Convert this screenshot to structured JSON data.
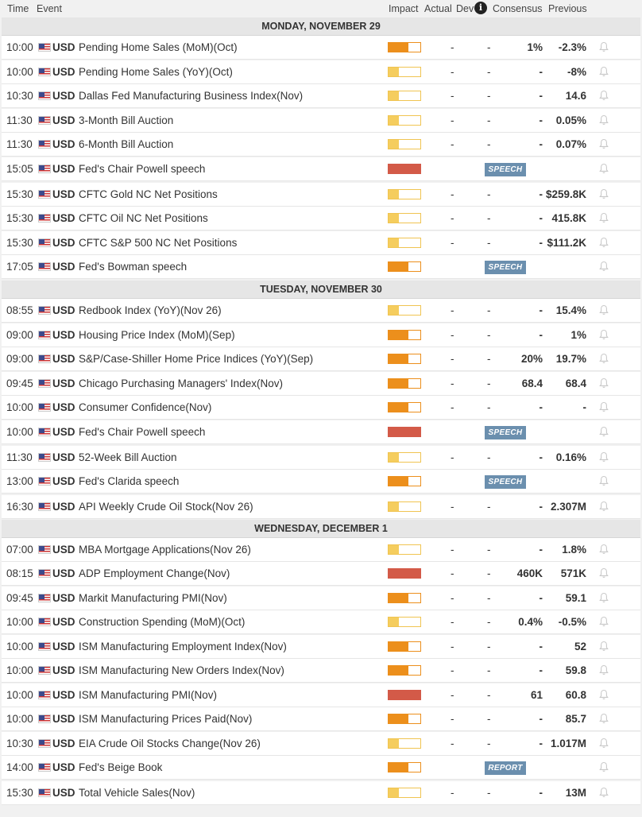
{
  "header": {
    "time": "Time",
    "event": "Event",
    "impact": "Impact",
    "actual": "Actual",
    "dev": "Dev",
    "consensus": "Consensus",
    "previous": "Previous"
  },
  "colors": {
    "impact_low": "#f5cd5e",
    "impact_medium": "#ec8f1c",
    "impact_high": "#d35a48",
    "badge": "#6b8fae"
  },
  "days": [
    {
      "label": "MONDAY, NOVEMBER 29",
      "events": [
        {
          "time": "10:00",
          "currency": "USD",
          "name": "Pending Home Sales (MoM)(Oct)",
          "impact": "medium",
          "actual": "-",
          "dev": "-",
          "consensus": "1%",
          "previous": "-2.3%"
        },
        {
          "time": "10:00",
          "currency": "USD",
          "name": "Pending Home Sales (YoY)(Oct)",
          "impact": "low",
          "actual": "-",
          "dev": "-",
          "consensus": "-",
          "previous": "-8%"
        },
        {
          "time": "10:30",
          "currency": "USD",
          "name": "Dallas Fed Manufacturing Business Index(Nov)",
          "impact": "low",
          "actual": "-",
          "dev": "-",
          "consensus": "-",
          "previous": "14.6"
        },
        {
          "time": "11:30",
          "currency": "USD",
          "name": "3-Month Bill Auction",
          "impact": "low",
          "actual": "-",
          "dev": "-",
          "consensus": "-",
          "previous": "0.05%"
        },
        {
          "time": "11:30",
          "currency": "USD",
          "name": "6-Month Bill Auction",
          "impact": "low",
          "actual": "-",
          "dev": "-",
          "consensus": "-",
          "previous": "0.07%"
        },
        {
          "time": "15:05",
          "currency": "USD",
          "name": "Fed's Chair Powell speech",
          "impact": "high",
          "badge": "SPEECH"
        },
        {
          "time": "15:30",
          "currency": "USD",
          "name": "CFTC Gold NC Net Positions",
          "impact": "low",
          "actual": "-",
          "dev": "-",
          "consensus": "-",
          "previous": "$259.8K"
        },
        {
          "time": "15:30",
          "currency": "USD",
          "name": "CFTC Oil NC Net Positions",
          "impact": "low",
          "actual": "-",
          "dev": "-",
          "consensus": "-",
          "previous": "415.8K"
        },
        {
          "time": "15:30",
          "currency": "USD",
          "name": "CFTC S&P 500 NC Net Positions",
          "impact": "low",
          "actual": "-",
          "dev": "-",
          "consensus": "-",
          "previous": "$111.2K"
        },
        {
          "time": "17:05",
          "currency": "USD",
          "name": "Fed's Bowman speech",
          "impact": "medium",
          "badge": "SPEECH"
        }
      ]
    },
    {
      "label": "TUESDAY, NOVEMBER 30",
      "events": [
        {
          "time": "08:55",
          "currency": "USD",
          "name": "Redbook Index (YoY)(Nov 26)",
          "impact": "low",
          "actual": "-",
          "dev": "-",
          "consensus": "-",
          "previous": "15.4%"
        },
        {
          "time": "09:00",
          "currency": "USD",
          "name": "Housing Price Index (MoM)(Sep)",
          "impact": "medium",
          "actual": "-",
          "dev": "-",
          "consensus": "-",
          "previous": "1%"
        },
        {
          "time": "09:00",
          "currency": "USD",
          "name": "S&P/Case-Shiller Home Price Indices (YoY)(Sep)",
          "impact": "medium",
          "actual": "-",
          "dev": "-",
          "consensus": "20%",
          "previous": "19.7%"
        },
        {
          "time": "09:45",
          "currency": "USD",
          "name": "Chicago Purchasing Managers' Index(Nov)",
          "impact": "medium",
          "actual": "-",
          "dev": "-",
          "consensus": "68.4",
          "previous": "68.4"
        },
        {
          "time": "10:00",
          "currency": "USD",
          "name": "Consumer Confidence(Nov)",
          "impact": "medium",
          "actual": "-",
          "dev": "-",
          "consensus": "-",
          "previous": "-"
        },
        {
          "time": "10:00",
          "currency": "USD",
          "name": "Fed's Chair Powell speech",
          "impact": "high",
          "badge": "SPEECH"
        },
        {
          "time": "11:30",
          "currency": "USD",
          "name": "52-Week Bill Auction",
          "impact": "low",
          "actual": "-",
          "dev": "-",
          "consensus": "-",
          "previous": "0.16%"
        },
        {
          "time": "13:00",
          "currency": "USD",
          "name": "Fed's Clarida speech",
          "impact": "medium",
          "badge": "SPEECH"
        },
        {
          "time": "16:30",
          "currency": "USD",
          "name": "API Weekly Crude Oil Stock(Nov 26)",
          "impact": "low",
          "actual": "-",
          "dev": "-",
          "consensus": "-",
          "previous": "2.307M"
        }
      ]
    },
    {
      "label": "WEDNESDAY, DECEMBER 1",
      "events": [
        {
          "time": "07:00",
          "currency": "USD",
          "name": "MBA Mortgage Applications(Nov 26)",
          "impact": "low",
          "actual": "-",
          "dev": "-",
          "consensus": "-",
          "previous": "1.8%"
        },
        {
          "time": "08:15",
          "currency": "USD",
          "name": "ADP Employment Change(Nov)",
          "impact": "high",
          "actual": "-",
          "dev": "-",
          "consensus": "460K",
          "previous": "571K"
        },
        {
          "time": "09:45",
          "currency": "USD",
          "name": "Markit Manufacturing PMI(Nov)",
          "impact": "medium",
          "actual": "-",
          "dev": "-",
          "consensus": "-",
          "previous": "59.1"
        },
        {
          "time": "10:00",
          "currency": "USD",
          "name": "Construction Spending (MoM)(Oct)",
          "impact": "low",
          "actual": "-",
          "dev": "-",
          "consensus": "0.4%",
          "previous": "-0.5%"
        },
        {
          "time": "10:00",
          "currency": "USD",
          "name": "ISM Manufacturing Employment Index(Nov)",
          "impact": "medium",
          "actual": "-",
          "dev": "-",
          "consensus": "-",
          "previous": "52"
        },
        {
          "time": "10:00",
          "currency": "USD",
          "name": "ISM Manufacturing New Orders Index(Nov)",
          "impact": "medium",
          "actual": "-",
          "dev": "-",
          "consensus": "-",
          "previous": "59.8"
        },
        {
          "time": "10:00",
          "currency": "USD",
          "name": "ISM Manufacturing PMI(Nov)",
          "impact": "high",
          "actual": "-",
          "dev": "-",
          "consensus": "61",
          "previous": "60.8"
        },
        {
          "time": "10:00",
          "currency": "USD",
          "name": "ISM Manufacturing Prices Paid(Nov)",
          "impact": "medium",
          "actual": "-",
          "dev": "-",
          "consensus": "-",
          "previous": "85.7"
        },
        {
          "time": "10:30",
          "currency": "USD",
          "name": "EIA Crude Oil Stocks Change(Nov 26)",
          "impact": "low",
          "actual": "-",
          "dev": "-",
          "consensus": "-",
          "previous": "1.017M"
        },
        {
          "time": "14:00",
          "currency": "USD",
          "name": "Fed's Beige Book",
          "impact": "medium",
          "badge": "REPORT"
        },
        {
          "time": "15:30",
          "currency": "USD",
          "name": "Total Vehicle Sales(Nov)",
          "impact": "low",
          "actual": "-",
          "dev": "-",
          "consensus": "-",
          "previous": "13M"
        }
      ]
    }
  ]
}
